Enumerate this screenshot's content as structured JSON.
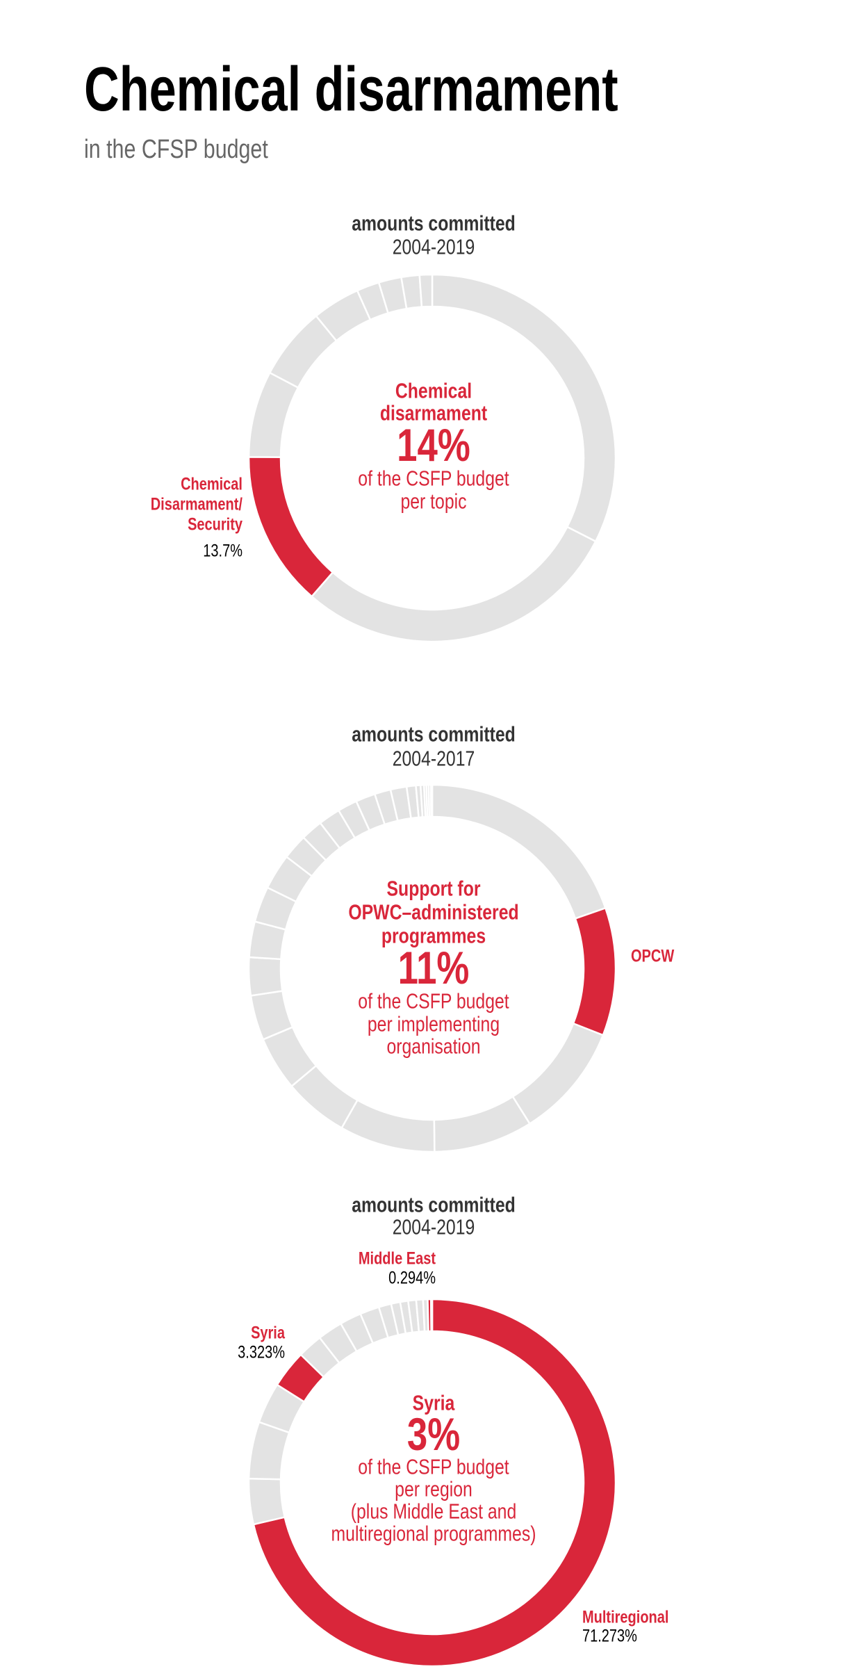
{
  "header": {
    "title": "Chemical disarmament",
    "subtitle": "in the CFSP budget"
  },
  "colors": {
    "highlight": "#d9263a",
    "other": "#e3e3e3",
    "separator": "#ffffff"
  },
  "chart_data": [
    {
      "type": "donut",
      "header_bold": "amounts committed",
      "header_period": "2004-2019",
      "center": {
        "lines_bold": [
          "Chemical",
          "disarmament"
        ],
        "percent": "14%",
        "lines": [
          "of the CSFP budget",
          "per topic"
        ]
      },
      "labels": [
        {
          "lines": [
            "Chemical",
            "Disarmament/",
            "Security"
          ],
          "value": "13.7%"
        }
      ],
      "segments": [
        {
          "value": 32.5,
          "highlight": false
        },
        {
          "value": 28.9,
          "highlight": false
        },
        {
          "value": 13.7,
          "highlight": true
        },
        {
          "value": 7.6,
          "highlight": false
        },
        {
          "value": 6.4,
          "highlight": false
        },
        {
          "value": 4.2,
          "highlight": false
        },
        {
          "value": 2.0,
          "highlight": false
        },
        {
          "value": 2.0,
          "highlight": false
        },
        {
          "value": 1.6,
          "highlight": false
        },
        {
          "value": 1.1,
          "highlight": false
        }
      ]
    },
    {
      "type": "donut",
      "header_bold": "amounts committed",
      "header_period": "2004-2017",
      "center": {
        "lines_bold": [
          "Support for",
          "OPWC–administered",
          "programmes"
        ],
        "percent": "11%",
        "lines": [
          "of the CSFP budget",
          "per implementing",
          "organisation"
        ]
      },
      "labels": [
        {
          "lines": [
            "OPCW"
          ],
          "value": ""
        }
      ],
      "segments": [
        {
          "value": 19.4,
          "highlight": false
        },
        {
          "value": 11.1,
          "highlight": true
        },
        {
          "value": 10.0,
          "highlight": false
        },
        {
          "value": 8.6,
          "highlight": false
        },
        {
          "value": 8.3,
          "highlight": false
        },
        {
          "value": 5.6,
          "highlight": false
        },
        {
          "value": 4.7,
          "highlight": false
        },
        {
          "value": 3.9,
          "highlight": false
        },
        {
          "value": 3.3,
          "highlight": false
        },
        {
          "value": 3.1,
          "highlight": false
        },
        {
          "value": 3.1,
          "highlight": false
        },
        {
          "value": 3.1,
          "highlight": false
        },
        {
          "value": 2.2,
          "highlight": false
        },
        {
          "value": 1.9,
          "highlight": false
        },
        {
          "value": 1.9,
          "highlight": false
        },
        {
          "value": 1.7,
          "highlight": false
        },
        {
          "value": 1.7,
          "highlight": false
        },
        {
          "value": 1.4,
          "highlight": false
        },
        {
          "value": 1.4,
          "highlight": false
        },
        {
          "value": 0.8,
          "highlight": false
        },
        {
          "value": 0.4,
          "highlight": false
        },
        {
          "value": 0.3,
          "highlight": false
        },
        {
          "value": 0.2,
          "highlight": false
        },
        {
          "value": 0.2,
          "highlight": false
        },
        {
          "value": 0.2,
          "highlight": false
        },
        {
          "value": 0.1,
          "highlight": false
        }
      ]
    },
    {
      "type": "donut",
      "header_bold": "amounts committed",
      "header_period": "2004-2019",
      "center": {
        "lines_bold": [
          "Syria"
        ],
        "percent": "3%",
        "lines": [
          "of the CSFP budget",
          "per region",
          "(plus Middle East and",
          "multiregional programmes)"
        ]
      },
      "labels": [
        {
          "lines": [
            "Middle East"
          ],
          "value": "0.294%"
        },
        {
          "lines": [
            "Syria"
          ],
          "value": "3.323%"
        },
        {
          "lines": [
            "Multiregional"
          ],
          "value": "71.273%"
        }
      ],
      "segments": [
        {
          "value": 71.273,
          "highlight": true
        },
        {
          "value": 4.0,
          "highlight": false
        },
        {
          "value": 5.0,
          "highlight": false
        },
        {
          "value": 3.6,
          "highlight": false
        },
        {
          "value": 3.323,
          "highlight": true
        },
        {
          "value": 2.2,
          "highlight": false
        },
        {
          "value": 2.2,
          "highlight": false
        },
        {
          "value": 1.9,
          "highlight": false
        },
        {
          "value": 1.7,
          "highlight": false
        },
        {
          "value": 1.1,
          "highlight": false
        },
        {
          "value": 0.8,
          "highlight": false
        },
        {
          "value": 0.7,
          "highlight": false
        },
        {
          "value": 0.7,
          "highlight": false
        },
        {
          "value": 0.6,
          "highlight": false
        },
        {
          "value": 0.4,
          "highlight": false
        },
        {
          "value": 0.294,
          "highlight": true
        },
        {
          "value": 0.1,
          "highlight": false
        }
      ]
    }
  ]
}
